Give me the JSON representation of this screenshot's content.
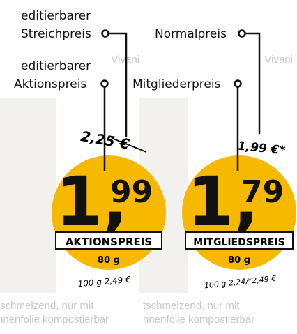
{
  "annotations": [
    {
      "lines": [
        "editierbarer",
        "Streichpreis"
      ]
    },
    {
      "lines": [
        "Normalpreis"
      ]
    },
    {
      "lines": [
        "editierbarer",
        "Aktionspreis"
      ]
    },
    {
      "lines": [
        "Mitgliederpreis"
      ]
    }
  ],
  "background": {
    "brand": [
      "Vivani",
      "Vivani"
    ],
    "description": [
      [
        "tschmelzend, nur mit",
        "nnenfolie kompostierbar"
      ],
      [
        "tschmelzend, nur mit",
        "nnenfolie kompostierbar"
      ]
    ]
  },
  "tags": [
    {
      "old_price": "2,25 €",
      "main": "1,",
      "cents": "99",
      "label": "AKTIONSPREIS",
      "weight": "80 g",
      "base_price": "100 g 2,49 €"
    },
    {
      "old_price": "1,99 €*",
      "main": "1,",
      "cents": "79",
      "label": "MITGLIEDSPREIS",
      "weight": "80 g",
      "base_price": "100 g 2,24/*2,49 €"
    }
  ]
}
